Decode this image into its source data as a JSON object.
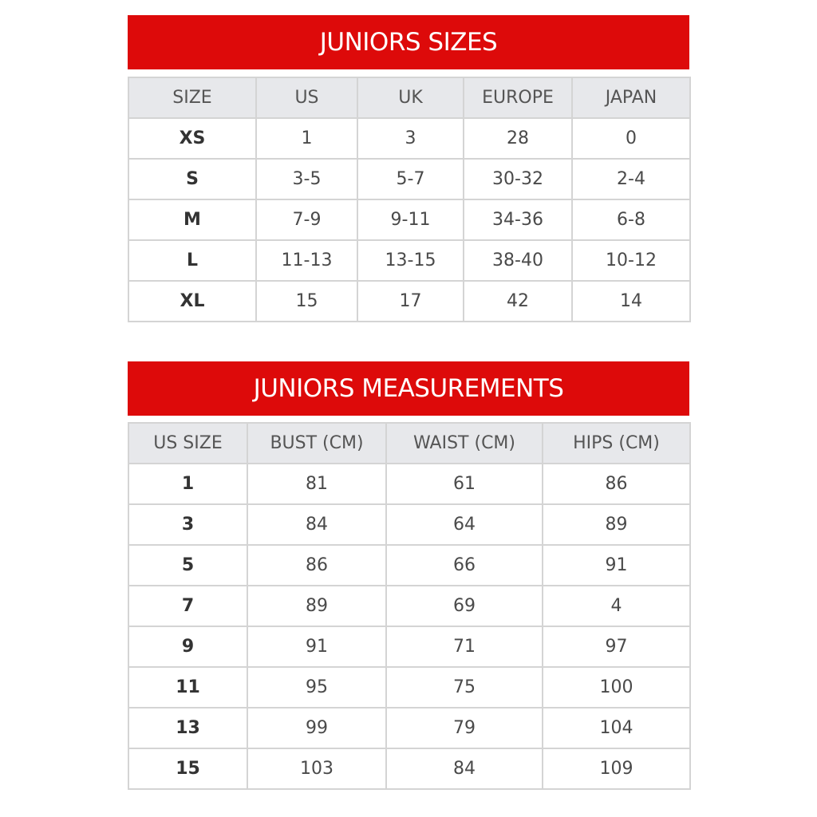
{
  "sizes": {
    "title": "JUNIORS SIZES",
    "headers": [
      "SIZE",
      "US",
      "UK",
      "EUROPE",
      "JAPAN"
    ],
    "rows": [
      [
        "XS",
        "1",
        "3",
        "28",
        "0"
      ],
      [
        "S",
        "3-5",
        "5-7",
        "30-32",
        "2-4"
      ],
      [
        "M",
        "7-9",
        "9-11",
        "34-36",
        "6-8"
      ],
      [
        "L",
        "11-13",
        "13-15",
        "38-40",
        "10-12"
      ],
      [
        "XL",
        "15",
        "17",
        "42",
        "14"
      ]
    ]
  },
  "measurements": {
    "title": "JUNIORS MEASUREMENTS",
    "headers": [
      "US SIZE",
      "BUST (CM)",
      "WAIST (CM)",
      "HIPS (CM)"
    ],
    "rows": [
      [
        "1",
        "81",
        "61",
        "86"
      ],
      [
        "3",
        "84",
        "64",
        "89"
      ],
      [
        "5",
        "86",
        "66",
        "91"
      ],
      [
        "7",
        "89",
        "69",
        "4"
      ],
      [
        "9",
        "91",
        "71",
        "97"
      ],
      [
        "11",
        "95",
        "75",
        "100"
      ],
      [
        "13",
        "99",
        "79",
        "104"
      ],
      [
        "15",
        "103",
        "84",
        "109"
      ]
    ]
  },
  "colors": {
    "banner": "#dd0a0a",
    "header_bg": "#e7e8eb",
    "border": "#d4d4d4"
  }
}
